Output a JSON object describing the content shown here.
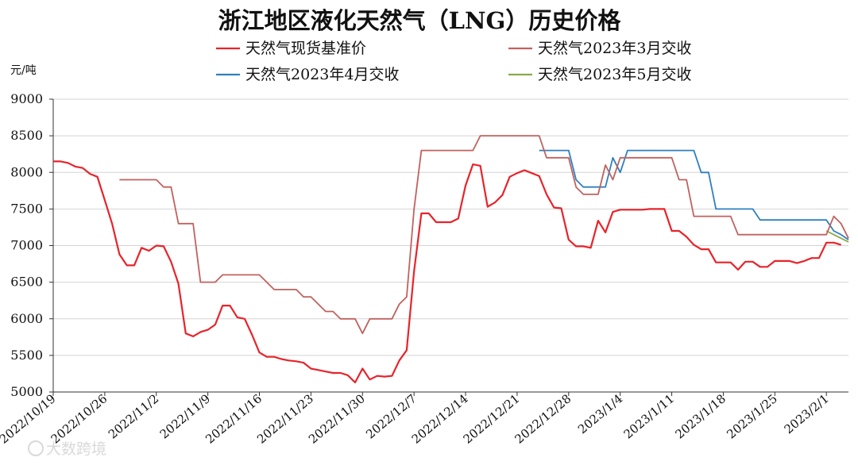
{
  "chart_data": {
    "type": "line",
    "title": "浙江地区液化天然气（LNG）历史价格",
    "ylabel": "元/吨",
    "xlabel": "",
    "ylim": [
      5000,
      9000
    ],
    "yticks": [
      5000,
      5500,
      6000,
      6500,
      7000,
      7500,
      8000,
      8500,
      9000
    ],
    "x_range": [
      "2022-10-19",
      "2023-02-04"
    ],
    "xticks": [
      "2022/10/19",
      "2022/10/26",
      "2022/11/2",
      "2022/11/9",
      "2022/11/16",
      "2022/11/23",
      "2022/11/30",
      "2022/12/7",
      "2022/12/14",
      "2022/12/21",
      "2022/12/28",
      "2023/1/4",
      "2023/1/11",
      "2023/1/18",
      "2023/1/25",
      "2023/2/1"
    ],
    "grid": "horizontal",
    "legend_position": "top",
    "series": [
      {
        "name": "天然气现货基准价",
        "color": "#e8232a",
        "points": [
          [
            "2022-10-19",
            8150
          ],
          [
            "2022-10-20",
            8150
          ],
          [
            "2022-10-21",
            8130
          ],
          [
            "2022-10-22",
            8080
          ],
          [
            "2022-10-23",
            8060
          ],
          [
            "2022-10-24",
            7980
          ],
          [
            "2022-10-25",
            7940
          ],
          [
            "2022-10-26",
            7620
          ],
          [
            "2022-10-27",
            7300
          ],
          [
            "2022-10-28",
            6880
          ],
          [
            "2022-10-29",
            6730
          ],
          [
            "2022-10-30",
            6730
          ],
          [
            "2022-10-31",
            6970
          ],
          [
            "2022-11-01",
            6930
          ],
          [
            "2022-11-02",
            7000
          ],
          [
            "2022-11-03",
            6990
          ],
          [
            "2022-11-04",
            6780
          ],
          [
            "2022-11-05",
            6480
          ],
          [
            "2022-11-06",
            5800
          ],
          [
            "2022-11-07",
            5760
          ],
          [
            "2022-11-08",
            5820
          ],
          [
            "2022-11-09",
            5850
          ],
          [
            "2022-11-10",
            5920
          ],
          [
            "2022-11-11",
            6180
          ],
          [
            "2022-11-12",
            6180
          ],
          [
            "2022-11-13",
            6020
          ],
          [
            "2022-11-14",
            6000
          ],
          [
            "2022-11-15",
            5780
          ],
          [
            "2022-11-16",
            5540
          ],
          [
            "2022-11-17",
            5480
          ],
          [
            "2022-11-18",
            5480
          ],
          [
            "2022-11-19",
            5450
          ],
          [
            "2022-11-20",
            5430
          ],
          [
            "2022-11-21",
            5420
          ],
          [
            "2022-11-22",
            5400
          ],
          [
            "2022-11-23",
            5320
          ],
          [
            "2022-11-24",
            5300
          ],
          [
            "2022-11-25",
            5280
          ],
          [
            "2022-11-26",
            5260
          ],
          [
            "2022-11-27",
            5260
          ],
          [
            "2022-11-28",
            5230
          ],
          [
            "2022-11-29",
            5130
          ],
          [
            "2022-11-30",
            5320
          ],
          [
            "2022-12-01",
            5170
          ],
          [
            "2022-12-02",
            5220
          ],
          [
            "2022-12-03",
            5210
          ],
          [
            "2022-12-04",
            5220
          ],
          [
            "2022-12-05",
            5430
          ],
          [
            "2022-12-06",
            5570
          ],
          [
            "2022-12-07",
            6650
          ],
          [
            "2022-12-08",
            7440
          ],
          [
            "2022-12-09",
            7440
          ],
          [
            "2022-12-10",
            7320
          ],
          [
            "2022-12-11",
            7320
          ],
          [
            "2022-12-12",
            7320
          ],
          [
            "2022-12-13",
            7370
          ],
          [
            "2022-12-14",
            7820
          ],
          [
            "2022-12-15",
            8110
          ],
          [
            "2022-12-16",
            8090
          ],
          [
            "2022-12-17",
            7530
          ],
          [
            "2022-12-18",
            7590
          ],
          [
            "2022-12-19",
            7690
          ],
          [
            "2022-12-20",
            7940
          ],
          [
            "2022-12-21",
            7990
          ],
          [
            "2022-12-22",
            8030
          ],
          [
            "2022-12-23",
            7990
          ],
          [
            "2022-12-24",
            7950
          ],
          [
            "2022-12-25",
            7700
          ],
          [
            "2022-12-26",
            7520
          ],
          [
            "2022-12-27",
            7510
          ],
          [
            "2022-12-28",
            7080
          ],
          [
            "2022-12-29",
            6990
          ],
          [
            "2022-12-30",
            6990
          ],
          [
            "2022-12-31",
            6970
          ],
          [
            "2023-01-01",
            7340
          ],
          [
            "2023-01-02",
            7180
          ],
          [
            "2023-01-03",
            7460
          ],
          [
            "2023-01-04",
            7490
          ],
          [
            "2023-01-05",
            7490
          ],
          [
            "2023-01-06",
            7490
          ],
          [
            "2023-01-07",
            7490
          ],
          [
            "2023-01-08",
            7500
          ],
          [
            "2023-01-09",
            7500
          ],
          [
            "2023-01-10",
            7500
          ],
          [
            "2023-01-11",
            7200
          ],
          [
            "2023-01-12",
            7200
          ],
          [
            "2023-01-13",
            7120
          ],
          [
            "2023-01-14",
            7010
          ],
          [
            "2023-01-15",
            6950
          ],
          [
            "2023-01-16",
            6950
          ],
          [
            "2023-01-17",
            6770
          ],
          [
            "2023-01-18",
            6770
          ],
          [
            "2023-01-19",
            6770
          ],
          [
            "2023-01-20",
            6670
          ],
          [
            "2023-01-21",
            6780
          ],
          [
            "2023-01-22",
            6780
          ],
          [
            "2023-01-23",
            6710
          ],
          [
            "2023-01-24",
            6710
          ],
          [
            "2023-01-25",
            6790
          ],
          [
            "2023-01-26",
            6790
          ],
          [
            "2023-01-27",
            6790
          ],
          [
            "2023-01-28",
            6760
          ],
          [
            "2023-01-29",
            6790
          ],
          [
            "2023-01-30",
            6830
          ],
          [
            "2023-01-31",
            6830
          ],
          [
            "2023-02-01",
            7040
          ],
          [
            "2023-02-02",
            7040
          ],
          [
            "2023-02-03",
            7010
          ]
        ]
      },
      {
        "name": "天然气2023年3月交收",
        "color": "#c0625e",
        "points": [
          [
            "2022-10-28",
            7900
          ],
          [
            "2022-11-02",
            7900
          ],
          [
            "2022-11-03",
            7800
          ],
          [
            "2022-11-04",
            7800
          ],
          [
            "2022-11-05",
            7300
          ],
          [
            "2022-11-07",
            7300
          ],
          [
            "2022-11-08",
            6500
          ],
          [
            "2022-11-10",
            6500
          ],
          [
            "2022-11-11",
            6600
          ],
          [
            "2022-11-16",
            6600
          ],
          [
            "2022-11-18",
            6400
          ],
          [
            "2022-11-21",
            6400
          ],
          [
            "2022-11-22",
            6300
          ],
          [
            "2022-11-23",
            6300
          ],
          [
            "2022-11-25",
            6100
          ],
          [
            "2022-11-26",
            6100
          ],
          [
            "2022-11-27",
            6000
          ],
          [
            "2022-11-29",
            6000
          ],
          [
            "2022-11-30",
            5800
          ],
          [
            "2022-12-01",
            6000
          ],
          [
            "2022-12-04",
            6000
          ],
          [
            "2022-12-05",
            6200
          ],
          [
            "2022-12-06",
            6300
          ],
          [
            "2022-12-07",
            7500
          ],
          [
            "2022-12-08",
            8300
          ],
          [
            "2022-12-15",
            8300
          ],
          [
            "2022-12-16",
            8500
          ],
          [
            "2022-12-24",
            8500
          ],
          [
            "2022-12-25",
            8200
          ],
          [
            "2022-12-28",
            8200
          ],
          [
            "2022-12-29",
            7800
          ],
          [
            "2022-12-30",
            7700
          ],
          [
            "2022-12-31",
            7700
          ],
          [
            "2023-01-01",
            7700
          ],
          [
            "2023-01-02",
            8100
          ],
          [
            "2023-01-03",
            7900
          ],
          [
            "2023-01-04",
            8200
          ],
          [
            "2023-01-11",
            8200
          ],
          [
            "2023-01-12",
            7900
          ],
          [
            "2023-01-13",
            7900
          ],
          [
            "2023-01-14",
            7400
          ],
          [
            "2023-01-19",
            7400
          ],
          [
            "2023-01-20",
            7150
          ],
          [
            "2023-02-01",
            7150
          ],
          [
            "2023-02-02",
            7400
          ],
          [
            "2023-02-03",
            7300
          ],
          [
            "2023-02-04",
            7100
          ]
        ]
      },
      {
        "name": "天然气2023年4月交收",
        "color": "#2f7fc1",
        "points": [
          [
            "2022-12-24",
            8300
          ],
          [
            "2022-12-28",
            8300
          ],
          [
            "2022-12-29",
            7900
          ],
          [
            "2022-12-30",
            7800
          ],
          [
            "2023-01-02",
            7800
          ],
          [
            "2023-01-03",
            8200
          ],
          [
            "2023-01-04",
            8000
          ],
          [
            "2023-01-05",
            8300
          ],
          [
            "2023-01-14",
            8300
          ],
          [
            "2023-01-15",
            8000
          ],
          [
            "2023-01-16",
            8000
          ],
          [
            "2023-01-17",
            7500
          ],
          [
            "2023-01-22",
            7500
          ],
          [
            "2023-01-23",
            7350
          ],
          [
            "2023-02-01",
            7350
          ],
          [
            "2023-02-02",
            7200
          ],
          [
            "2023-02-03",
            7150
          ],
          [
            "2023-02-04",
            7080
          ]
        ]
      },
      {
        "name": "天然气2023年5月交收",
        "color": "#8aaa4a",
        "points": [
          [
            "2023-02-01",
            7200
          ],
          [
            "2023-02-02",
            7150
          ],
          [
            "2023-02-03",
            7100
          ],
          [
            "2023-02-04",
            7050
          ]
        ]
      }
    ]
  },
  "watermark": "大数跨境"
}
